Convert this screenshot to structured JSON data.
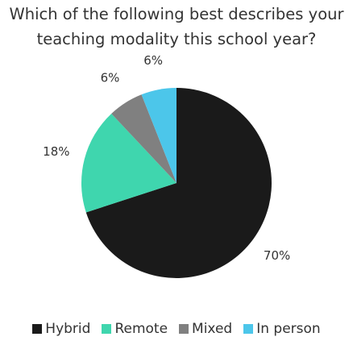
{
  "chart_data": {
    "type": "pie",
    "title": "Which of the following best describes your teaching modality this school year?",
    "categories": [
      "Hybrid",
      "Remote",
      "Mixed",
      "In person"
    ],
    "values": [
      70,
      18,
      6,
      6
    ],
    "value_labels": [
      "70%",
      "18%",
      "6%",
      "6%"
    ],
    "colors": [
      "#1a1a1a",
      "#3fd6ae",
      "#808080",
      "#4cc6ea"
    ],
    "legend": "bottom"
  }
}
